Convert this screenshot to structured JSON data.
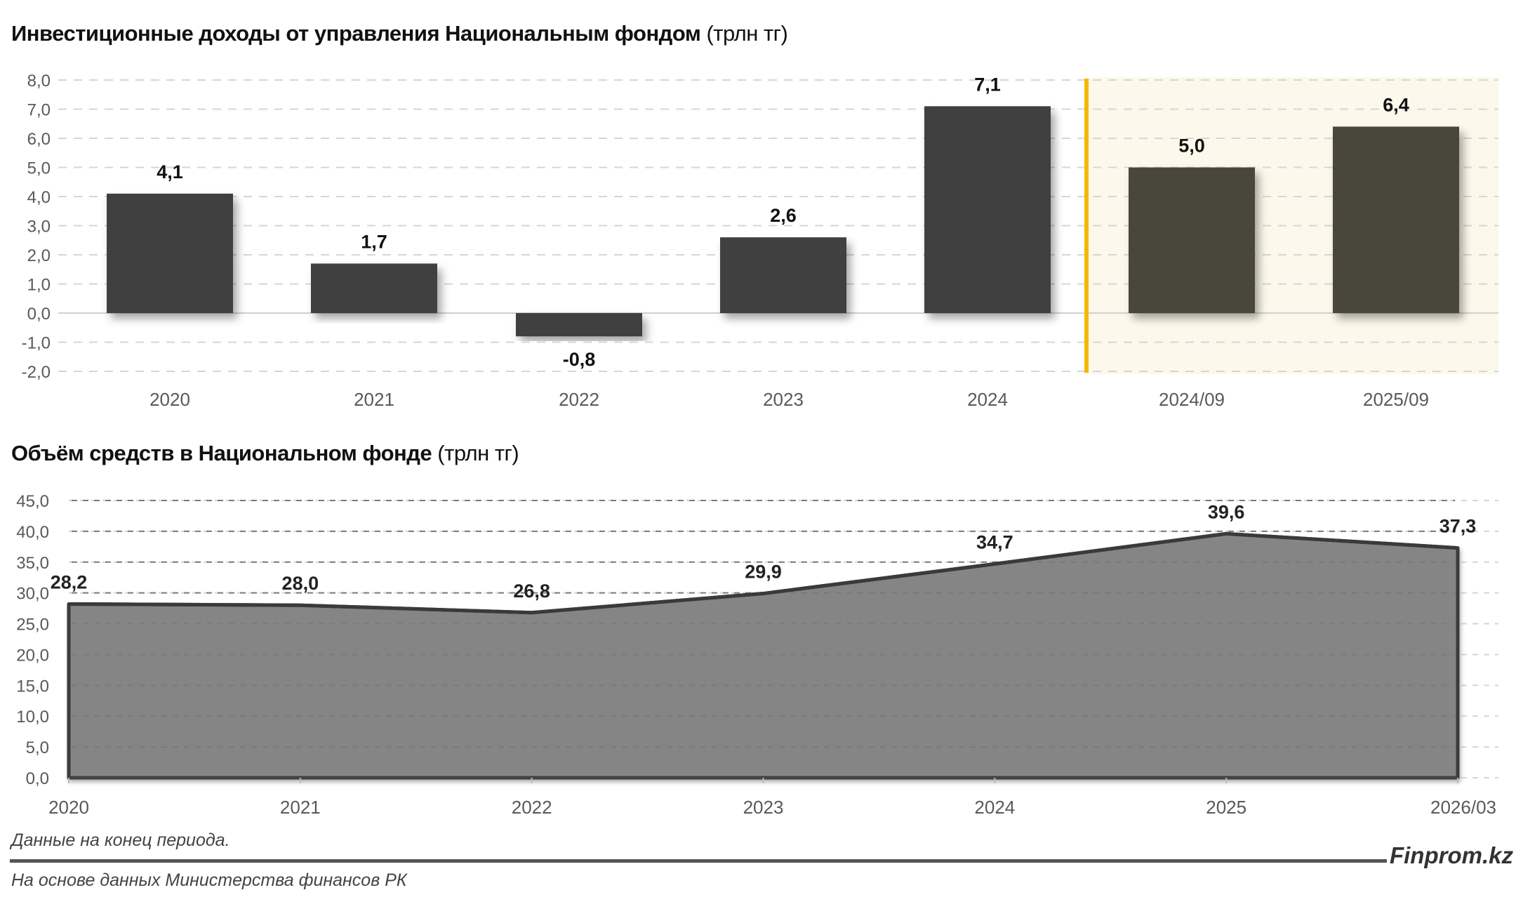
{
  "chart_data": [
    {
      "type": "bar",
      "title": "Инвестиционные доходы от управления Национальным фондом",
      "unit": "(трлн тг)",
      "categories": [
        "2020",
        "2021",
        "2022",
        "2023",
        "2024",
        "2024/09",
        "2025/09"
      ],
      "values": [
        4.1,
        1.7,
        -0.8,
        2.6,
        7.1,
        5.0,
        6.4
      ],
      "value_labels": [
        "4,1",
        "1,7",
        "-0,8",
        "2,6",
        "7,1",
        "5,0",
        "6,4"
      ],
      "highlighted_categories": [
        "2024/09",
        "2025/09"
      ],
      "ylim": [
        -2,
        8
      ],
      "yticks": [
        "8,0",
        "7,0",
        "6,0",
        "5,0",
        "4,0",
        "3,0",
        "2,0",
        "1,0",
        "0,0",
        "-1,0",
        "-2,0"
      ],
      "xlabel": "",
      "ylabel": "",
      "grid": true,
      "colors": {
        "bar": "#3f3f3f",
        "bar_highlight": "#4a473a",
        "divider": "#f5b800",
        "highlight_bg": "#fcf8eb"
      }
    },
    {
      "type": "area",
      "title": "Объём средств в Национальном фонде",
      "unit": "(трлн тг)",
      "categories": [
        "2020",
        "2021",
        "2022",
        "2023",
        "2024",
        "2025",
        "2026/03"
      ],
      "values": [
        28.2,
        28.0,
        26.8,
        29.9,
        34.7,
        39.6,
        37.3
      ],
      "value_labels": [
        "28,2",
        "28,0",
        "26,8",
        "29,9",
        "34,7",
        "39,6",
        "37,3"
      ],
      "ylim": [
        0,
        45
      ],
      "yticks": [
        "45,0",
        "40,0",
        "35,0",
        "30,0",
        "25,0",
        "20,0",
        "15,0",
        "10,0",
        "5,0",
        "0,0"
      ],
      "xlabel": "",
      "ylabel": "",
      "grid": true,
      "colors": {
        "fill": "#858585",
        "line": "#3a3a3a"
      }
    }
  ],
  "footer": {
    "note": "Данные на конец периода.",
    "source": "На основе данных Министерства финансов РК",
    "brand": "Finprom.kz"
  }
}
